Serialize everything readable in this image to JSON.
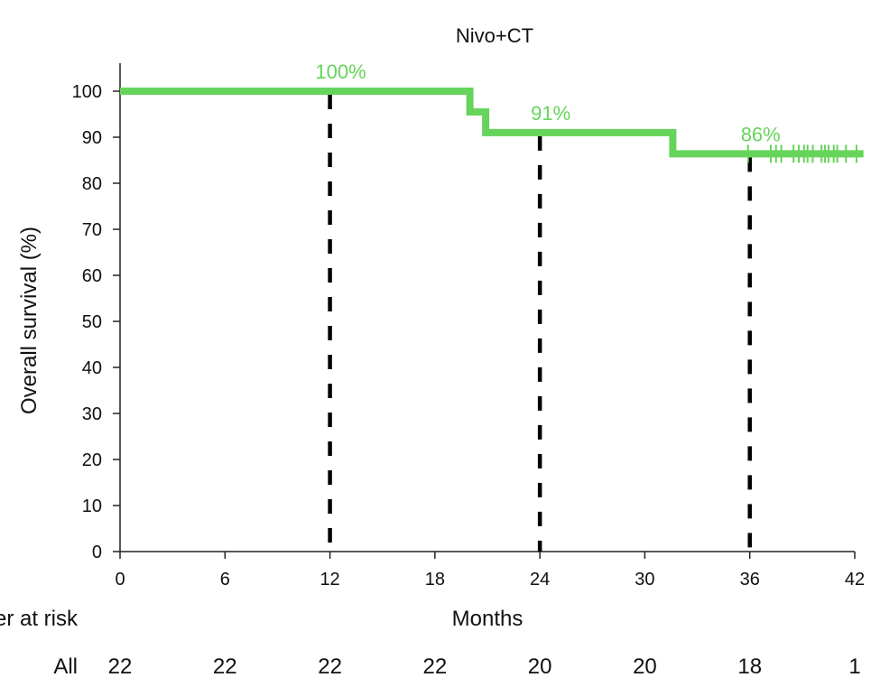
{
  "chart_data": {
    "type": "line",
    "title": "Nivo+CT",
    "xlabel": "Months",
    "ylabel": "Overall survival (%)",
    "xlim": [
      0,
      42
    ],
    "ylim": [
      0,
      100
    ],
    "x_ticks": [
      0,
      6,
      12,
      18,
      24,
      30,
      36,
      42
    ],
    "y_ticks": [
      0,
      10,
      20,
      30,
      40,
      50,
      60,
      70,
      80,
      90,
      100
    ],
    "grid": false,
    "series": [
      {
        "color": "#66d45a",
        "step_points": [
          [
            0,
            100
          ],
          [
            20,
            100
          ],
          [
            20,
            95.5
          ],
          [
            20.9,
            95.5
          ],
          [
            20.9,
            91
          ],
          [
            31.6,
            91
          ],
          [
            31.6,
            86.4
          ],
          [
            42.5,
            86.4
          ]
        ],
        "censor_x": [
          35.9,
          37.2,
          37.5,
          37.8,
          38.5,
          38.8,
          39.1,
          39.3,
          39.6,
          40.1,
          40.3,
          40.5,
          40.8,
          41.0,
          41.5,
          42.1
        ]
      }
    ],
    "reference_lines": [
      {
        "x": 12,
        "label": "100%",
        "label_y": 100
      },
      {
        "x": 24,
        "label": "91%",
        "label_y": 91
      },
      {
        "x": 36,
        "label": "86%",
        "label_y": 86.4
      }
    ],
    "risk_table": {
      "title": "Number at risk",
      "rows": [
        {
          "label": "All",
          "values": [
            22,
            22,
            22,
            22,
            20,
            20,
            18,
            1
          ]
        }
      ]
    }
  }
}
